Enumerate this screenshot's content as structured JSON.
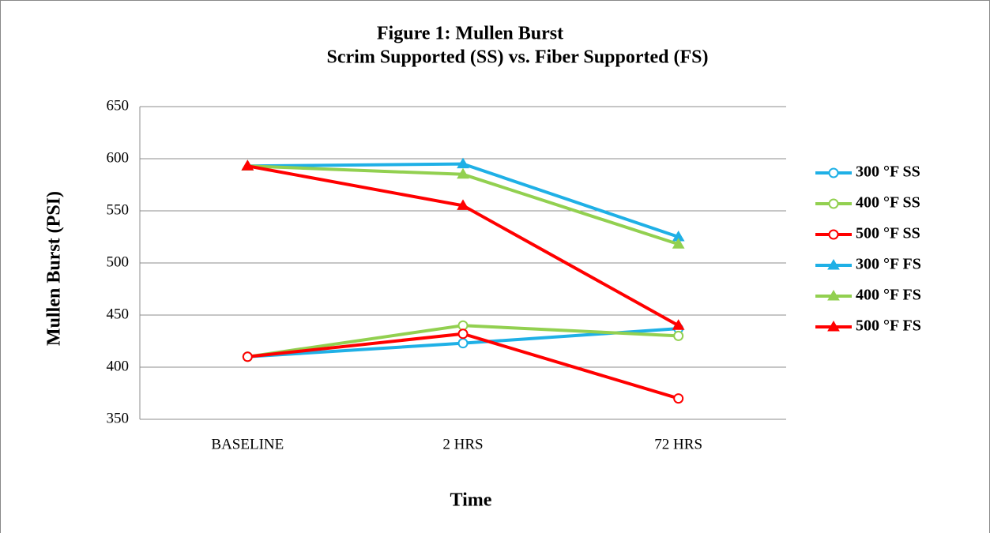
{
  "chart_data": {
    "type": "line",
    "title": "Figure 1:  Mullen Burst",
    "subtitle": "Scrim Supported (SS) vs. Fiber Supported (FS)",
    "x_label": "Time",
    "y_label": "Mullen Burst (PSI)",
    "categories": [
      "BASELINE",
      "2 HRS",
      "72 HRS"
    ],
    "series": [
      {
        "name": "300 °F SS",
        "color": "#1fb0e6",
        "marker": "circle",
        "values": [
          410,
          423,
          437
        ]
      },
      {
        "name": "400 °F SS",
        "color": "#92d050",
        "marker": "circle",
        "values": [
          410,
          440,
          430
        ]
      },
      {
        "name": "500 °F SS",
        "color": "#ff0000",
        "marker": "circle",
        "values": [
          410,
          432,
          370
        ]
      },
      {
        "name": "300 °F FS",
        "color": "#1fb0e6",
        "marker": "triangle",
        "values": [
          593,
          595,
          525
        ]
      },
      {
        "name": "400 °F FS",
        "color": "#92d050",
        "marker": "triangle",
        "values": [
          593,
          585,
          518
        ]
      },
      {
        "name": "500 °F FS",
        "color": "#ff0000",
        "marker": "triangle",
        "values": [
          593,
          555,
          440
        ]
      }
    ],
    "ylim": [
      350,
      650
    ],
    "yticks": [
      350,
      400,
      450,
      500,
      550,
      600,
      650
    ],
    "grid": true,
    "legend": "right"
  }
}
